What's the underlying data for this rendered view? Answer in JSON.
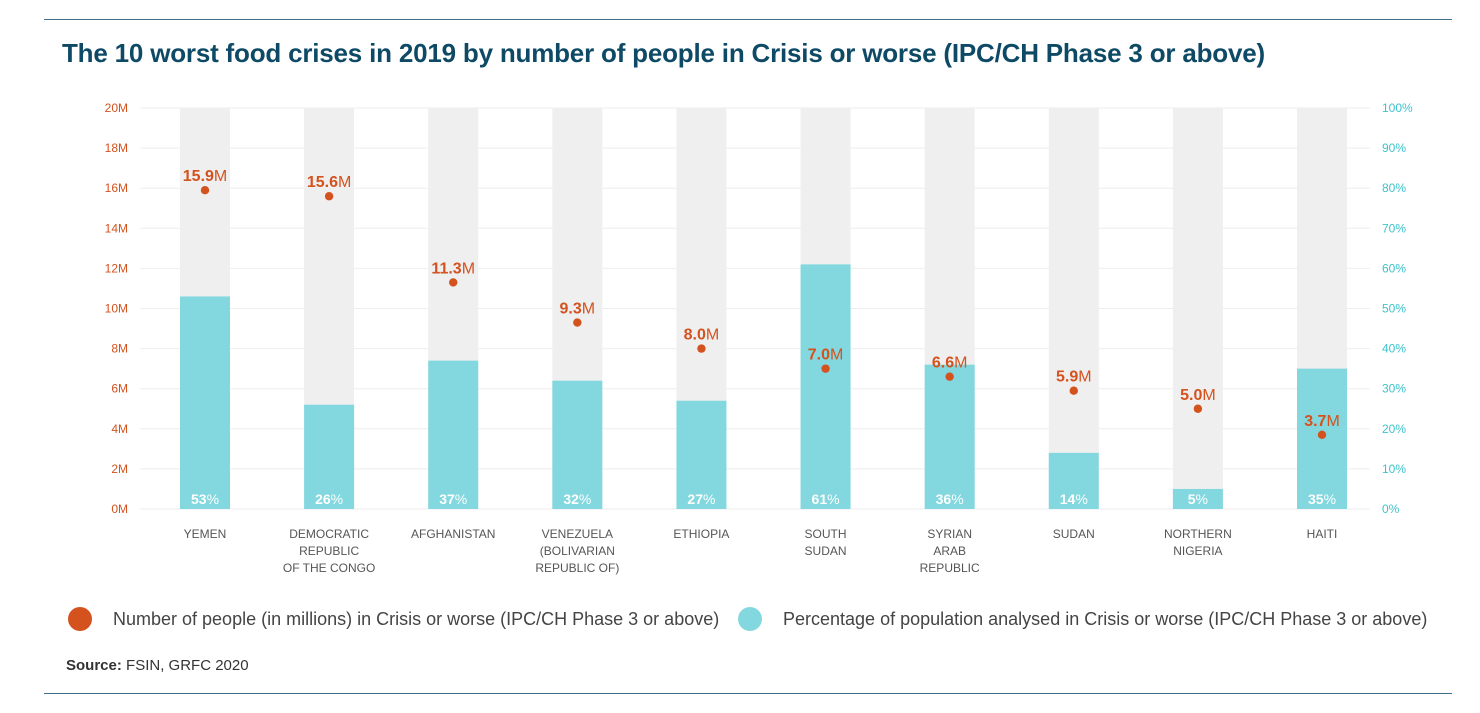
{
  "title": "The 10 worst food crises in 2019 by number of people in Crisis or worse (IPC/CH Phase 3 or above)",
  "colors": {
    "people": "#d4521e",
    "percent": "#82d8de",
    "track": "#efefef",
    "title": "#0e4a66",
    "left_axis": "#d4521e",
    "right_axis": "#3ec3cc",
    "rule": "#3f6f86"
  },
  "legend": [
    {
      "label": "Number of people (in millions) in Crisis or worse (IPC/CH Phase 3 or above)",
      "color": "#d4521e"
    },
    {
      "label": "Percentage of population analysed in Crisis or worse (IPC/CH Phase 3 or above)",
      "color": "#82d8de"
    }
  ],
  "source": {
    "label": "Source:",
    "text": "FSIN, GRFC 2020"
  },
  "chart_data": {
    "type": "bar",
    "categories": [
      [
        "YEMEN"
      ],
      [
        "DEMOCRATIC",
        "REPUBLIC",
        "OF THE CONGO"
      ],
      [
        "AFGHANISTAN"
      ],
      [
        "VENEZUELA",
        "(BOLIVARIAN",
        "REPUBLIC OF)"
      ],
      [
        "ETHIOPIA"
      ],
      [
        "SOUTH",
        "SUDAN"
      ],
      [
        "SYRIAN",
        "ARAB",
        "REPUBLIC"
      ],
      [
        "SUDAN"
      ],
      [
        "NORTHERN",
        "NIGERIA"
      ],
      [
        "HAITI"
      ]
    ],
    "series": [
      {
        "name": "Number of people (in millions) in Crisis or worse (IPC/CH Phase 3 or above)",
        "kind": "point",
        "axis": "left",
        "values": [
          15.9,
          15.6,
          11.3,
          9.3,
          8.0,
          7.0,
          6.6,
          5.9,
          5.0,
          3.7
        ],
        "labels": [
          "15.9",
          "15.6",
          "11.3",
          "9.3",
          "8.0",
          "7.0",
          "6.6",
          "5.9",
          "5.0",
          "3.7"
        ],
        "unit_suffix": "M"
      },
      {
        "name": "Percentage of population analysed in Crisis or worse (IPC/CH Phase 3 or above)",
        "kind": "bar",
        "axis": "right",
        "values": [
          53,
          26,
          37,
          32,
          27,
          61,
          36,
          14,
          5,
          35
        ],
        "labels": [
          "53",
          "26",
          "37",
          "32",
          "27",
          "61",
          "36",
          "14",
          "5",
          "35"
        ],
        "unit_suffix": "%"
      }
    ],
    "left_axis": {
      "ylim": [
        0,
        20
      ],
      "ticks": [
        0,
        2,
        4,
        6,
        8,
        10,
        12,
        14,
        16,
        18,
        20
      ],
      "tick_labels": [
        "0M",
        "2M",
        "4M",
        "6M",
        "8M",
        "10M",
        "12M",
        "14M",
        "16M",
        "18M",
        "20M"
      ]
    },
    "right_axis": {
      "ylim": [
        0,
        100
      ],
      "ticks": [
        0,
        10,
        20,
        30,
        40,
        50,
        60,
        70,
        80,
        90,
        100
      ],
      "tick_labels": [
        "0%",
        "10%",
        "20%",
        "30%",
        "40%",
        "50%",
        "60%",
        "70%",
        "80%",
        "90%",
        "100%"
      ]
    },
    "grid": true,
    "legend_position": "bottom"
  }
}
